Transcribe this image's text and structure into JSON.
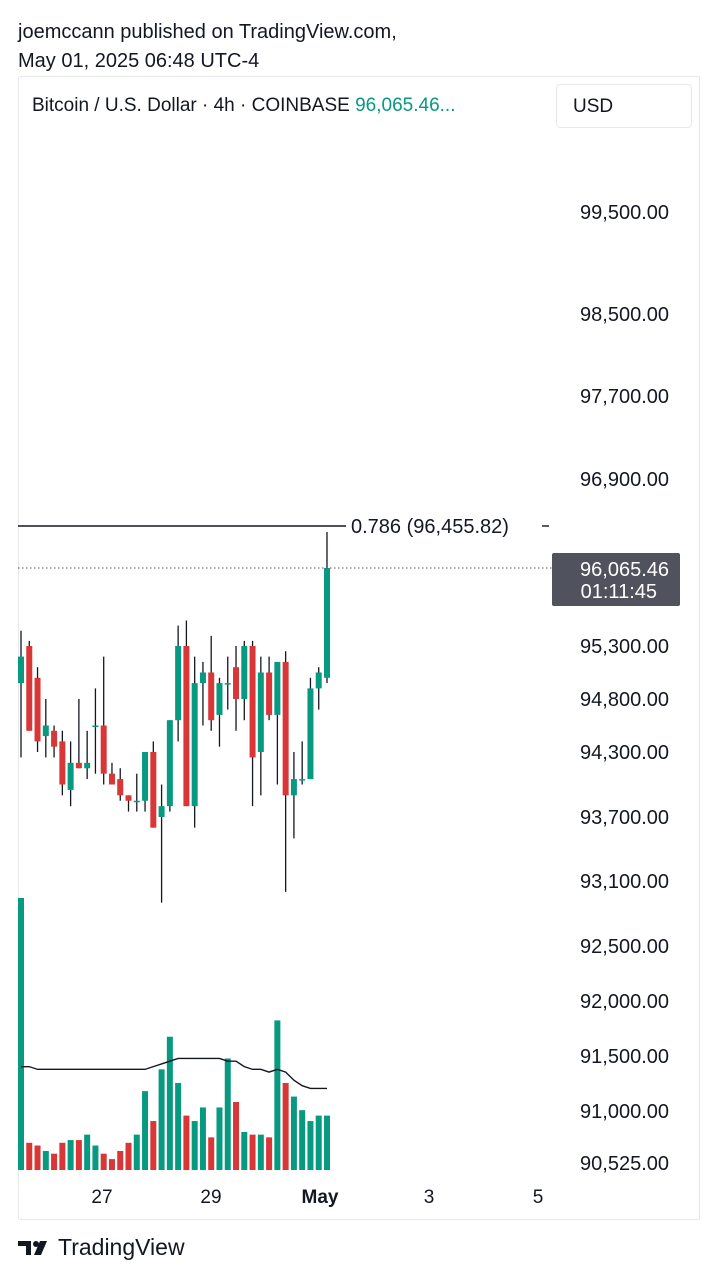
{
  "publication": {
    "line1": "joemccann published on TradingView.com,",
    "line2": "May 01, 2025 06:48 UTC-4"
  },
  "legend": {
    "symbol": "Bitcoin / U.S. Dollar · 4h · COINBASE",
    "price": "96,065.46..."
  },
  "currency_button": "USD",
  "footer": {
    "brand": "TradingView"
  },
  "colors": {
    "up": "#089981",
    "down": "#d93737",
    "text": "#131722",
    "grid": "#e6e8ec"
  },
  "chart_data": {
    "type": "candlestick",
    "symbol": "Bitcoin / U.S. Dollar",
    "interval": "4h",
    "exchange": "COINBASE",
    "y_tick_labels": [
      "99,500.00",
      "98,500.00",
      "97,700.00",
      "96,900.00",
      "95,300.00",
      "94,800.00",
      "94,300.00",
      "93,700.00",
      "93,100.00",
      "92,500.00",
      "92,000.00",
      "91,500.00",
      "91,000.00",
      "90,525.00"
    ],
    "x_tick_labels": [
      "27",
      "29",
      "May",
      "3",
      "5"
    ],
    "last_price": {
      "value": "96,065.46",
      "countdown": "01:11:45"
    },
    "fib_level": {
      "label": "0.786 (96,455.82)",
      "price": 96455.82
    },
    "candles": [
      {
        "o": 94950,
        "h": 95450,
        "l": 94250,
        "c": 95200
      },
      {
        "o": 95300,
        "h": 95350,
        "l": 94500,
        "c": 94500
      },
      {
        "o": 95000,
        "h": 95100,
        "l": 94300,
        "c": 94400
      },
      {
        "o": 94450,
        "h": 94800,
        "l": 94250,
        "c": 94550
      },
      {
        "o": 94500,
        "h": 94550,
        "l": 94250,
        "c": 94350
      },
      {
        "o": 94400,
        "h": 94500,
        "l": 93900,
        "c": 94000
      },
      {
        "o": 93950,
        "h": 94400,
        "l": 93800,
        "c": 94200
      },
      {
        "o": 94200,
        "h": 94800,
        "l": 94150,
        "c": 94150
      },
      {
        "o": 94150,
        "h": 94500,
        "l": 94050,
        "c": 94200
      },
      {
        "o": 94550,
        "h": 94900,
        "l": 94100,
        "c": 94550
      },
      {
        "o": 94550,
        "h": 95200,
        "l": 94000,
        "c": 94100
      },
      {
        "o": 94100,
        "h": 94200,
        "l": 94000,
        "c": 94000
      },
      {
        "o": 94050,
        "h": 94150,
        "l": 93850,
        "c": 93900
      },
      {
        "o": 93900,
        "h": 93900,
        "l": 93750,
        "c": 93850
      },
      {
        "o": 93850,
        "h": 94100,
        "l": 93750,
        "c": 93850
      },
      {
        "o": 93850,
        "h": 94300,
        "l": 93750,
        "c": 94300
      },
      {
        "o": 94300,
        "h": 94400,
        "l": 93600,
        "c": 93600
      },
      {
        "o": 93700,
        "h": 94000,
        "l": 92900,
        "c": 93800
      },
      {
        "o": 93800,
        "h": 94600,
        "l": 93750,
        "c": 94600
      },
      {
        "o": 94600,
        "h": 95500,
        "l": 94400,
        "c": 95300
      },
      {
        "o": 95300,
        "h": 95550,
        "l": 93800,
        "c": 93800
      },
      {
        "o": 93800,
        "h": 95200,
        "l": 93600,
        "c": 94950
      },
      {
        "o": 94950,
        "h": 95150,
        "l": 94550,
        "c": 95050
      },
      {
        "o": 95050,
        "h": 95400,
        "l": 94500,
        "c": 94600
      },
      {
        "o": 94650,
        "h": 95000,
        "l": 94350,
        "c": 94950
      },
      {
        "o": 94950,
        "h": 95200,
        "l": 94700,
        "c": 94950
      },
      {
        "o": 95100,
        "h": 95300,
        "l": 94500,
        "c": 94800
      },
      {
        "o": 94800,
        "h": 95350,
        "l": 94600,
        "c": 95300
      },
      {
        "o": 95300,
        "h": 95350,
        "l": 93800,
        "c": 94250
      },
      {
        "o": 94300,
        "h": 95200,
        "l": 93900,
        "c": 95050
      },
      {
        "o": 95050,
        "h": 95200,
        "l": 94600,
        "c": 94650
      },
      {
        "o": 94650,
        "h": 95150,
        "l": 94000,
        "c": 95150
      },
      {
        "o": 95150,
        "h": 95250,
        "l": 93000,
        "c": 93900
      },
      {
        "o": 93900,
        "h": 94300,
        "l": 93500,
        "c": 94050
      },
      {
        "o": 94050,
        "h": 94400,
        "l": 94000,
        "c": 94050
      },
      {
        "o": 94050,
        "h": 95000,
        "l": 94050,
        "c": 94900
      },
      {
        "o": 94900,
        "h": 95100,
        "l": 94700,
        "c": 95050
      },
      {
        "o": 95000,
        "h": 96400,
        "l": 94950,
        "c": 96065.46
      }
    ],
    "volume": [
      1.0,
      0.1,
      0.09,
      0.07,
      0.06,
      0.1,
      0.11,
      0.11,
      0.13,
      0.09,
      0.06,
      0.04,
      0.07,
      0.1,
      0.13,
      0.29,
      0.18,
      0.37,
      0.49,
      0.32,
      0.2,
      0.18,
      0.23,
      0.12,
      0.23,
      0.41,
      0.25,
      0.14,
      0.13,
      0.13,
      0.12,
      0.55,
      0.32,
      0.27,
      0.22,
      0.18,
      0.2,
      0.2
    ],
    "volume_ma": [
      0.38,
      0.38,
      0.37,
      0.37,
      0.37,
      0.37,
      0.37,
      0.37,
      0.37,
      0.37,
      0.37,
      0.37,
      0.37,
      0.37,
      0.37,
      0.37,
      0.38,
      0.39,
      0.4,
      0.41,
      0.41,
      0.41,
      0.41,
      0.41,
      0.41,
      0.4,
      0.4,
      0.38,
      0.37,
      0.37,
      0.36,
      0.37,
      0.36,
      0.33,
      0.31,
      0.3,
      0.3,
      0.3
    ]
  }
}
